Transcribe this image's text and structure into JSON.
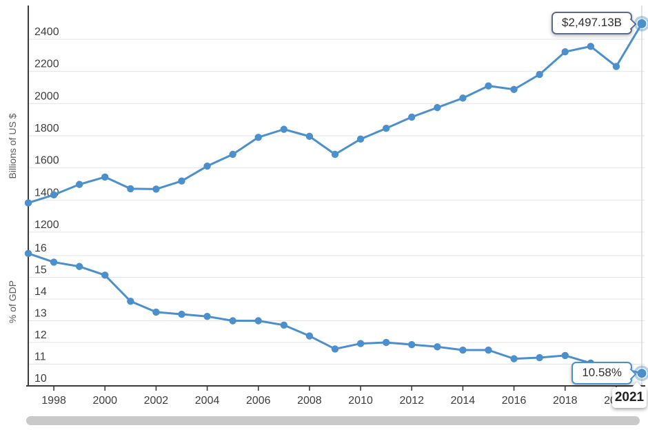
{
  "chart_data": [
    {
      "type": "line",
      "title": "",
      "ylabel": "Billions of US $",
      "x": [
        1997,
        1998,
        1999,
        2000,
        2001,
        2002,
        2003,
        2004,
        2005,
        2006,
        2007,
        2008,
        2009,
        2010,
        2011,
        2012,
        2013,
        2014,
        2015,
        2016,
        2017,
        2018,
        2019,
        2020,
        2021
      ],
      "series": [
        {
          "name": "Billions of US $",
          "values": [
            1382,
            1432,
            1497,
            1543,
            1470,
            1468,
            1518,
            1611,
            1684,
            1790,
            1840,
            1796,
            1684,
            1779,
            1846,
            1916,
            1975,
            2034,
            2110,
            2088,
            2181,
            2322,
            2356,
            2231,
            2497.13
          ]
        }
      ],
      "ylim": [
        1150,
        2520
      ],
      "yticks": [
        2400,
        2200,
        2000,
        1800,
        1600,
        1400,
        1200
      ],
      "grid": true,
      "legend_position": "none",
      "highlight": {
        "x": 2021,
        "value": 2497.13,
        "label": "$2,497.13B"
      }
    },
    {
      "type": "line",
      "title": "",
      "ylabel": "% of GDP",
      "x": [
        1997,
        1998,
        1999,
        2000,
        2001,
        2002,
        2003,
        2004,
        2005,
        2006,
        2007,
        2008,
        2009,
        2010,
        2011,
        2012,
        2013,
        2014,
        2015,
        2016,
        2017,
        2018,
        2019,
        2020,
        2021
      ],
      "series": [
        {
          "name": "% of GDP",
          "values": [
            16.1,
            15.7,
            15.5,
            15.1,
            13.9,
            13.4,
            13.3,
            13.2,
            13.0,
            13.0,
            12.8,
            12.3,
            11.7,
            11.95,
            12.0,
            11.9,
            11.8,
            11.65,
            11.65,
            11.25,
            11.3,
            11.4,
            11.05,
            10.85,
            10.58
          ]
        }
      ],
      "ylim": [
        10,
        16.3
      ],
      "yticks": [
        16,
        15,
        14,
        13,
        12,
        11,
        10
      ],
      "grid": true,
      "legend_position": "none",
      "highlight": {
        "x": 2021,
        "value": 10.58,
        "label": "10.58%"
      }
    }
  ],
  "x_axis": {
    "tick_years": [
      1998,
      2000,
      2002,
      2004,
      2006,
      2008,
      2010,
      2012,
      2014,
      2016,
      2018,
      2020
    ],
    "crosshair_year": 2021
  },
  "tooltips": {
    "value_label": "$2,497.13B",
    "pct_label": "10.58%",
    "year_label": "2021"
  },
  "colors": {
    "line": "#4b8fcd",
    "highlight_ring": "rgba(75,143,205,0.42)",
    "grid": "#e4e4e4",
    "axis": "#3a3a3a",
    "tick_text": "#3d3d3d",
    "crosshair": "#d2d2d2",
    "value_tooltip_border": "#5a6b8c",
    "pct_tooltip_border": "#4b8fcd",
    "scrollbar": "#c9c9c9"
  }
}
